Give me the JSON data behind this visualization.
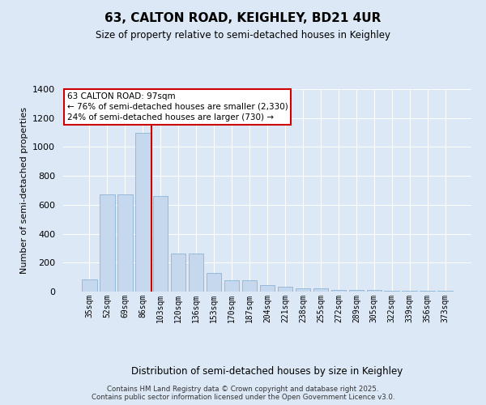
{
  "title_line1": "63, CALTON ROAD, KEIGHLEY, BD21 4UR",
  "title_line2": "Size of property relative to semi-detached houses in Keighley",
  "xlabel": "Distribution of semi-detached houses by size in Keighley",
  "ylabel": "Number of semi-detached properties",
  "categories": [
    "35sqm",
    "52sqm",
    "69sqm",
    "86sqm",
    "103sqm",
    "120sqm",
    "136sqm",
    "153sqm",
    "170sqm",
    "187sqm",
    "204sqm",
    "221sqm",
    "238sqm",
    "255sqm",
    "272sqm",
    "289sqm",
    "305sqm",
    "322sqm",
    "339sqm",
    "356sqm",
    "373sqm"
  ],
  "values": [
    85,
    670,
    670,
    1095,
    660,
    265,
    265,
    130,
    80,
    80,
    45,
    35,
    25,
    25,
    10,
    10,
    12,
    8,
    5,
    5,
    3
  ],
  "bar_color": "#c5d8ed",
  "bar_edge_color": "#7aaece",
  "vline_color": "#cc0000",
  "annotation_title": "63 CALTON ROAD: 97sqm",
  "annotation_line1": "← 76% of semi-detached houses are smaller (2,330)",
  "annotation_line2": "24% of semi-detached houses are larger (730) →",
  "annotation_box_edge_color": "#cc0000",
  "ylim": [
    0,
    1400
  ],
  "yticks": [
    0,
    200,
    400,
    600,
    800,
    1000,
    1200,
    1400
  ],
  "bg_color": "#dce8f5",
  "footer_line1": "Contains HM Land Registry data © Crown copyright and database right 2025.",
  "footer_line2": "Contains public sector information licensed under the Open Government Licence v3.0."
}
